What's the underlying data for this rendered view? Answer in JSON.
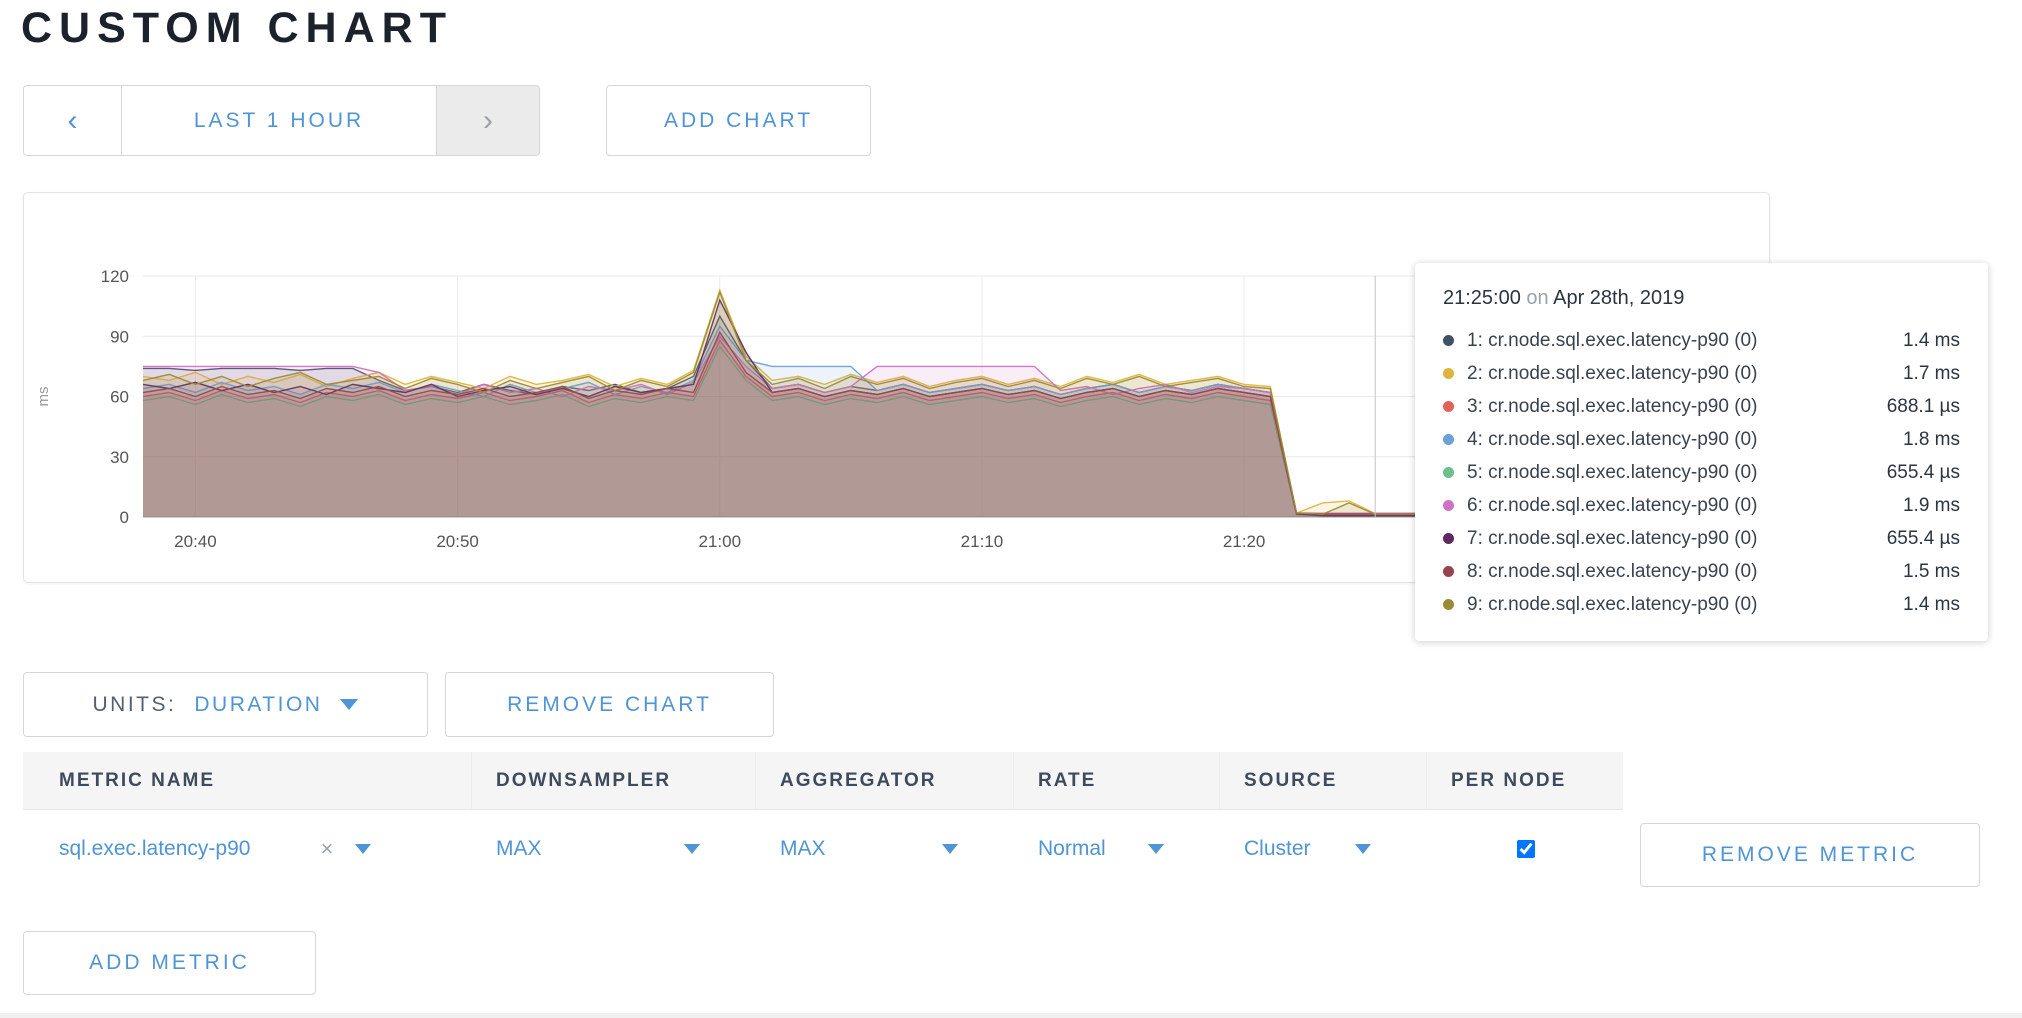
{
  "page": {
    "title": "CUSTOM CHART"
  },
  "toolbar": {
    "prev_icon": "‹",
    "next_icon": "›",
    "time_range_label": "LAST 1 HOUR",
    "add_chart_label": "ADD CHART"
  },
  "chart_controls": {
    "units_label": "UNITS:",
    "units_value": "DURATION",
    "remove_chart_label": "REMOVE CHART"
  },
  "tooltip": {
    "time": "21:25:00",
    "on_word": "on",
    "date": "Apr 28th, 2019",
    "rows": [
      {
        "label": "1: cr.node.sql.exec.latency-p90 (0)",
        "value": "1.4 ms",
        "color": "#3f5169"
      },
      {
        "label": "2: cr.node.sql.exec.latency-p90 (0)",
        "value": "1.7 ms",
        "color": "#deb43c"
      },
      {
        "label": "3: cr.node.sql.exec.latency-p90 (0)",
        "value": "688.1 µs",
        "color": "#e2625a"
      },
      {
        "label": "4: cr.node.sql.exec.latency-p90 (0)",
        "value": "1.8 ms",
        "color": "#6ba1d9"
      },
      {
        "label": "5: cr.node.sql.exec.latency-p90 (0)",
        "value": "655.4 µs",
        "color": "#6cc08b"
      },
      {
        "label": "6: cr.node.sql.exec.latency-p90 (0)",
        "value": "1.9 ms",
        "color": "#cf72c3"
      },
      {
        "label": "7: cr.node.sql.exec.latency-p90 (0)",
        "value": "655.4 µs",
        "color": "#5c2a5e"
      },
      {
        "label": "8: cr.node.sql.exec.latency-p90 (0)",
        "value": "1.5 ms",
        "color": "#98414f"
      },
      {
        "label": "9: cr.node.sql.exec.latency-p90 (0)",
        "value": "1.4 ms",
        "color": "#9b8b36"
      }
    ]
  },
  "metrics_table": {
    "headers": [
      "METRIC NAME",
      "DOWNSAMPLER",
      "AGGREGATOR",
      "RATE",
      "SOURCE",
      "PER NODE"
    ],
    "clear_icon": "×",
    "rows": [
      {
        "metric_name": "sql.exec.latency-p90",
        "downsampler": "MAX",
        "aggregator": "MAX",
        "rate": "Normal",
        "source": "Cluster",
        "per_node_checked": true,
        "remove_label": "REMOVE METRIC"
      }
    ],
    "add_metric_label": "ADD METRIC"
  },
  "chart_data": {
    "type": "area",
    "title": "",
    "ylabel": "ms",
    "ylim": [
      0,
      120
    ],
    "y_ticks": [
      0,
      30,
      60,
      90,
      120
    ],
    "x_start_time": "20:38",
    "sample_interval_min": 1,
    "data_start_min": 0,
    "x_domain_minutes": [
      0,
      60
    ],
    "guideline_min": 47,
    "x_ticks": [
      {
        "label": "20:40",
        "min": 2
      },
      {
        "label": "20:50",
        "min": 12
      },
      {
        "label": "21:00",
        "min": 22
      },
      {
        "label": "21:10",
        "min": 32
      },
      {
        "label": "21:20",
        "min": 42
      }
    ],
    "series": [
      {
        "name": "1: cr.node.sql.exec.latency-p90 (0)",
        "color": "#3f5169",
        "values": [
          74,
          74,
          73,
          74,
          74,
          74,
          73,
          74,
          74,
          68,
          63,
          65,
          62,
          66,
          63,
          61,
          65,
          63,
          66,
          62,
          64,
          70,
          100,
          78,
          64,
          66,
          62,
          65,
          63,
          66,
          62,
          64,
          66,
          63,
          65,
          61,
          64,
          66,
          62,
          65,
          63,
          66,
          64,
          62,
          2,
          1.4,
          1.4,
          1.4,
          1.4,
          1.4
        ]
      },
      {
        "name": "2: cr.node.sql.exec.latency-p90 (0)",
        "color": "#deb43c",
        "values": [
          70,
          68,
          72,
          66,
          70,
          67,
          71,
          65,
          69,
          72,
          66,
          70,
          67,
          64,
          70,
          66,
          68,
          71,
          65,
          69,
          66,
          73,
          113,
          80,
          68,
          70,
          66,
          71,
          67,
          70,
          65,
          68,
          70,
          66,
          69,
          65,
          70,
          67,
          71,
          66,
          68,
          70,
          66,
          65,
          2,
          7,
          8,
          1.7,
          1.7,
          1.7
        ]
      },
      {
        "name": "3: cr.node.sql.exec.latency-p90 (0)",
        "color": "#e2625a",
        "values": [
          60,
          62,
          58,
          63,
          59,
          61,
          57,
          62,
          60,
          63,
          58,
          61,
          59,
          62,
          58,
          60,
          63,
          57,
          61,
          59,
          62,
          60,
          88,
          70,
          60,
          62,
          58,
          61,
          59,
          62,
          58,
          60,
          62,
          59,
          61,
          57,
          60,
          62,
          58,
          61,
          59,
          62,
          60,
          58,
          1.5,
          0.7,
          0.7,
          0.7,
          0.7,
          0.7
        ]
      },
      {
        "name": "4: cr.node.sql.exec.latency-p90 (0)",
        "color": "#6ba1d9",
        "values": [
          64,
          66,
          62,
          67,
          63,
          65,
          61,
          66,
          64,
          67,
          62,
          66,
          63,
          60,
          66,
          62,
          64,
          67,
          61,
          65,
          62,
          68,
          95,
          78,
          75,
          75,
          75,
          75,
          63,
          66,
          62,
          64,
          66,
          63,
          65,
          61,
          64,
          66,
          62,
          65,
          63,
          66,
          64,
          62,
          2,
          1.8,
          1.8,
          1.8,
          1.8,
          1.8
        ]
      },
      {
        "name": "5: cr.node.sql.exec.latency-p90 (0)",
        "color": "#6cc08b",
        "values": [
          58,
          60,
          56,
          61,
          57,
          59,
          55,
          60,
          58,
          61,
          56,
          59,
          57,
          60,
          56,
          58,
          61,
          55,
          59,
          57,
          60,
          58,
          85,
          68,
          58,
          60,
          56,
          59,
          57,
          60,
          56,
          58,
          60,
          57,
          59,
          55,
          58,
          60,
          56,
          59,
          57,
          60,
          58,
          56,
          1.2,
          0.66,
          0.66,
          0.66,
          0.66,
          0.66
        ]
      },
      {
        "name": "6: cr.node.sql.exec.latency-p90 (0)",
        "color": "#cf72c3",
        "values": [
          75,
          75,
          75,
          75,
          75,
          75,
          75,
          75,
          75,
          72,
          63,
          65,
          61,
          66,
          62,
          64,
          60,
          65,
          63,
          66,
          61,
          67,
          90,
          75,
          64,
          66,
          62,
          65,
          75,
          75,
          75,
          75,
          75,
          75,
          75,
          63,
          65,
          61,
          64,
          66,
          62,
          65,
          64,
          62,
          2,
          1.9,
          1.9,
          1.9,
          1.9,
          1.9
        ]
      },
      {
        "name": "7: cr.node.sql.exec.latency-p90 (0)",
        "color": "#5c2a5e",
        "values": [
          66,
          64,
          67,
          63,
          66,
          62,
          65,
          61,
          66,
          64,
          62,
          66,
          60,
          63,
          65,
          61,
          64,
          60,
          65,
          62,
          64,
          66,
          108,
          82,
          62,
          64,
          60,
          63,
          61,
          64,
          60,
          62,
          64,
          61,
          63,
          59,
          62,
          64,
          60,
          63,
          61,
          64,
          62,
          60,
          1.5,
          0.66,
          0.66,
          0.66,
          0.66,
          0.66
        ]
      },
      {
        "name": "8: cr.node.sql.exec.latency-p90 (0)",
        "color": "#98414f",
        "values": [
          62,
          64,
          60,
          65,
          61,
          63,
          59,
          64,
          62,
          65,
          60,
          63,
          61,
          64,
          60,
          62,
          65,
          59,
          63,
          61,
          64,
          62,
          92,
          72,
          62,
          64,
          60,
          63,
          61,
          64,
          60,
          62,
          64,
          61,
          63,
          59,
          62,
          64,
          60,
          63,
          61,
          64,
          62,
          60,
          1.8,
          1.5,
          1.5,
          1.5,
          1.5,
          1.5
        ]
      },
      {
        "name": "9: cr.node.sql.exec.latency-p90 (0)",
        "color": "#9b8b36",
        "values": [
          68,
          71,
          66,
          70,
          65,
          69,
          72,
          66,
          68,
          70,
          64,
          69,
          66,
          62,
          68,
          64,
          67,
          70,
          63,
          68,
          65,
          72,
          112,
          78,
          66,
          69,
          64,
          70,
          66,
          69,
          64,
          67,
          69,
          65,
          68,
          64,
          69,
          66,
          70,
          65,
          67,
          69,
          65,
          64,
          2,
          1.4,
          7,
          1.4,
          1.4,
          1.4
        ]
      }
    ]
  }
}
